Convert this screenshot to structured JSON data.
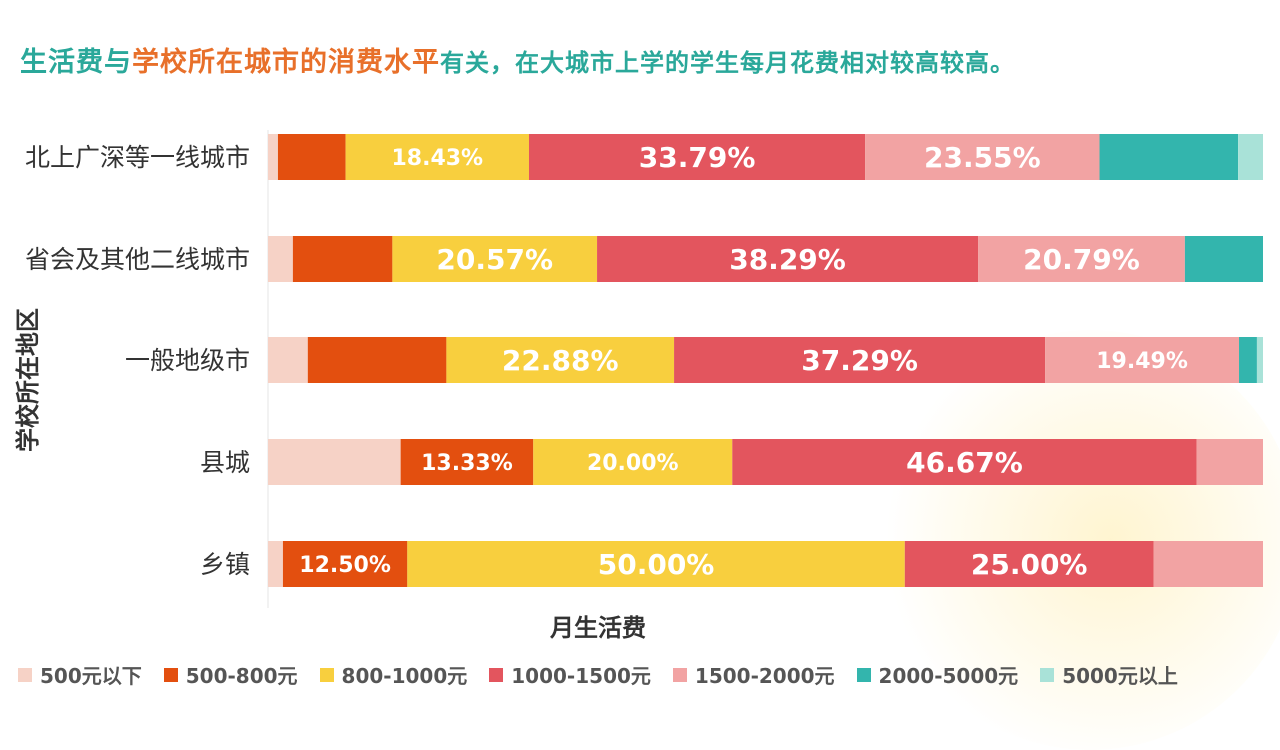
{
  "title": {
    "part1": "生活费与",
    "part2": "学校所在城市的消费水平",
    "part3": "有关，在大城市上学的学生每月花费相对较高较高。"
  },
  "chart_data": {
    "type": "bar",
    "orientation": "horizontal",
    "stacked": true,
    "xlabel": "月生活费",
    "ylabel": "学校所在地区",
    "xlim": [
      0,
      100
    ],
    "grid": false,
    "legend_position": "bottom",
    "categories": [
      "北上广深等一线城市",
      "省会及其他二线城市",
      "一般地级市",
      "县城",
      "乡镇"
    ],
    "series": [
      {
        "name": "500元以下",
        "color": "#f6d2c6",
        "values": [
          1.0,
          2.5,
          4.0,
          13.33,
          1.5
        ]
      },
      {
        "name": "500-800元",
        "color": "#e34f0f",
        "values": [
          6.8,
          10.0,
          13.93,
          13.33,
          12.5
        ]
      },
      {
        "name": "800-1000元",
        "color": "#f8cf3e",
        "values": [
          18.43,
          20.57,
          22.88,
          20.0,
          50.0
        ]
      },
      {
        "name": "1000-1500元",
        "color": "#e3555e",
        "values": [
          33.79,
          38.29,
          37.29,
          46.67,
          25.0
        ]
      },
      {
        "name": "1500-2000元",
        "color": "#f2a3a3",
        "values": [
          23.55,
          20.79,
          19.49,
          6.67,
          11.0
        ]
      },
      {
        "name": "2000-5000元",
        "color": "#33b5ad",
        "values": [
          13.93,
          7.85,
          1.8,
          0,
          0
        ]
      },
      {
        "name": "5000元以上",
        "color": "#a9e2d8",
        "values": [
          2.5,
          0,
          0.61,
          0,
          0
        ]
      }
    ],
    "data_labels": [
      {
        "category": 0,
        "series": 2,
        "text": "18.43%"
      },
      {
        "category": 0,
        "series": 3,
        "text": "33.79%"
      },
      {
        "category": 0,
        "series": 4,
        "text": "23.55%"
      },
      {
        "category": 1,
        "series": 2,
        "text": "20.57%"
      },
      {
        "category": 1,
        "series": 3,
        "text": "38.29%"
      },
      {
        "category": 1,
        "series": 4,
        "text": "20.79%"
      },
      {
        "category": 2,
        "series": 2,
        "text": "22.88%"
      },
      {
        "category": 2,
        "series": 3,
        "text": "37.29%"
      },
      {
        "category": 2,
        "series": 4,
        "text": "19.49%"
      },
      {
        "category": 3,
        "series": 1,
        "text": "13.33%"
      },
      {
        "category": 3,
        "series": 2,
        "text": "20.00%"
      },
      {
        "category": 3,
        "series": 3,
        "text": "46.67%"
      },
      {
        "category": 4,
        "series": 1,
        "text": "12.50%"
      },
      {
        "category": 4,
        "series": 2,
        "text": "50.00%"
      },
      {
        "category": 4,
        "series": 3,
        "text": "25.00%"
      }
    ]
  }
}
